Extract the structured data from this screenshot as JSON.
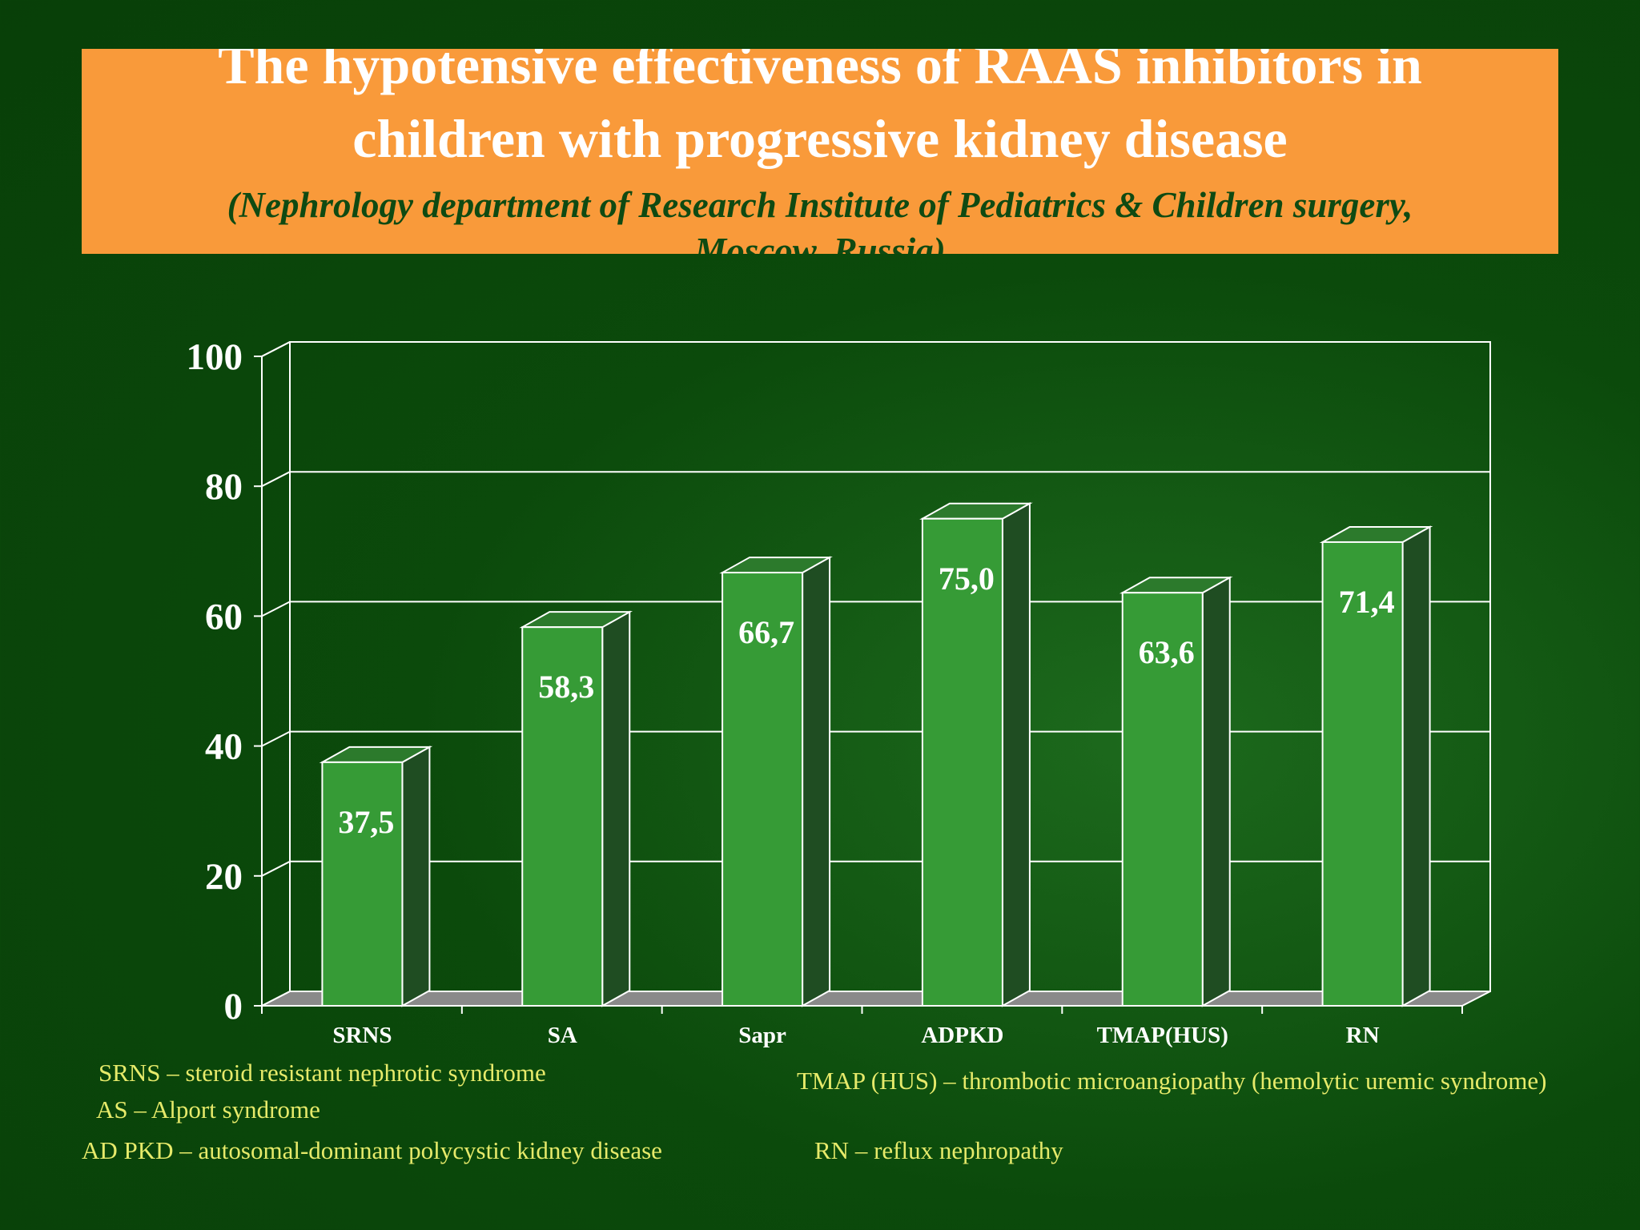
{
  "chart_data": {
    "type": "bar3d",
    "title": "The hypotensive effectiveness of  RAAS inhibitors in",
    "title_line2": "children with progressive kidney disease",
    "subtitle": "(Nephrology department of Research Institute of Pediatrics & Children surgery,",
    "subtitle_line2": "Moscow,  Russia)",
    "categories": [
      "SRNS",
      "SA",
      "Sapr",
      "ADPKD",
      "TMAP(HUS)",
      "RN"
    ],
    "values": [
      37.5,
      58.3,
      66.7,
      75.0,
      63.6,
      71.4
    ],
    "value_labels": [
      "37,5",
      "58,3",
      "66,7",
      "75,0",
      "63,6",
      "71,4"
    ],
    "color": "#369b36",
    "ylim": [
      0,
      100
    ],
    "yticks": [
      0,
      20,
      40,
      60,
      80,
      100
    ],
    "grid": true,
    "notes": [
      "SRNS – steroid resistant nephrotic syndrome",
      "AS – Alport syndrome",
      "AD PKD – autosomal-dominant polycystic kidney disease",
      "TMAP (HUS) – thrombotic microangiopathy (hemolytic uremic syndrome)",
      "RN – reflux nephropathy"
    ]
  }
}
